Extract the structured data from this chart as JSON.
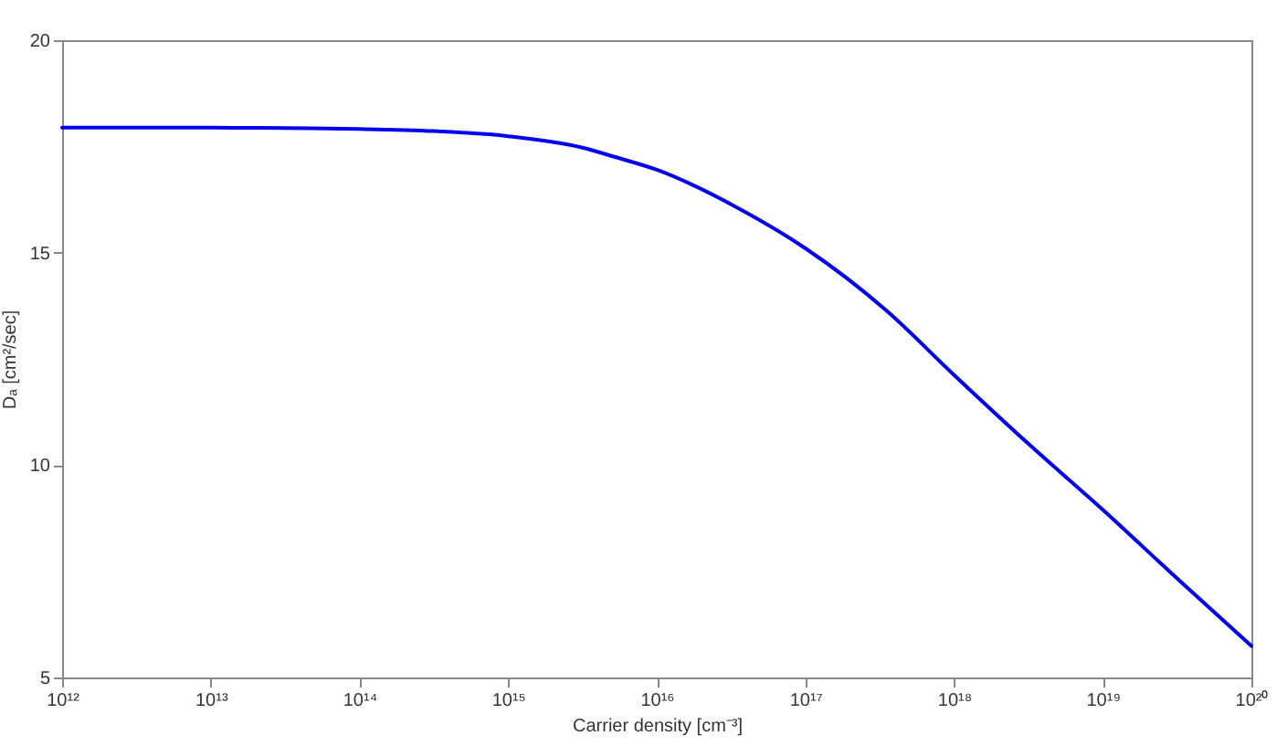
{
  "chart_data": {
    "type": "line",
    "xlabel": "Carrier density [cm⁻³]",
    "ylabel": "Dₐ [cm²/sec]",
    "log": "x",
    "x": [
      1000000000000.0,
      10000000000000.0,
      31620000000000.0,
      100000000000000.0,
      316200000000000.0,
      1000000000000000.0,
      3162000000000000.0,
      5250000000000000.0,
      1e+16,
      3.39e+16,
      1e+17,
      3.47e+17,
      1e+18,
      3.162e+18,
      1e+19,
      3.162e+19,
      1e+20
    ],
    "series": [
      {
        "color": "#0000ee",
        "values": [
          17.94,
          17.94,
          17.93,
          17.91,
          17.86,
          17.74,
          17.47,
          17.25,
          16.95,
          16.08,
          15.1,
          13.65,
          12.12,
          10.5,
          8.95,
          7.33,
          5.74
        ]
      }
    ],
    "xlim": [
      1000000000000.0,
      1e+20
    ],
    "xticks": [
      {
        "value": 1000000000000.0,
        "label": "10¹²"
      },
      {
        "value": 10000000000000.0,
        "label": "10¹³"
      },
      {
        "value": 100000000000000.0,
        "label": "10¹⁴"
      },
      {
        "value": 1000000000000000.0,
        "label": "10¹⁵"
      },
      {
        "value": 1e+16,
        "label": "10¹⁶"
      },
      {
        "value": 1e+17,
        "label": "10¹⁷"
      },
      {
        "value": 1e+18,
        "label": "10¹⁸"
      },
      {
        "value": 1e+19,
        "label": "10¹⁹"
      },
      {
        "value": 1e+20,
        "label": "10²⁰"
      }
    ],
    "ylim": [
      5,
      20
    ],
    "yticks": [
      5,
      10,
      15,
      20
    ],
    "marker": "none",
    "line_style": "solid"
  }
}
